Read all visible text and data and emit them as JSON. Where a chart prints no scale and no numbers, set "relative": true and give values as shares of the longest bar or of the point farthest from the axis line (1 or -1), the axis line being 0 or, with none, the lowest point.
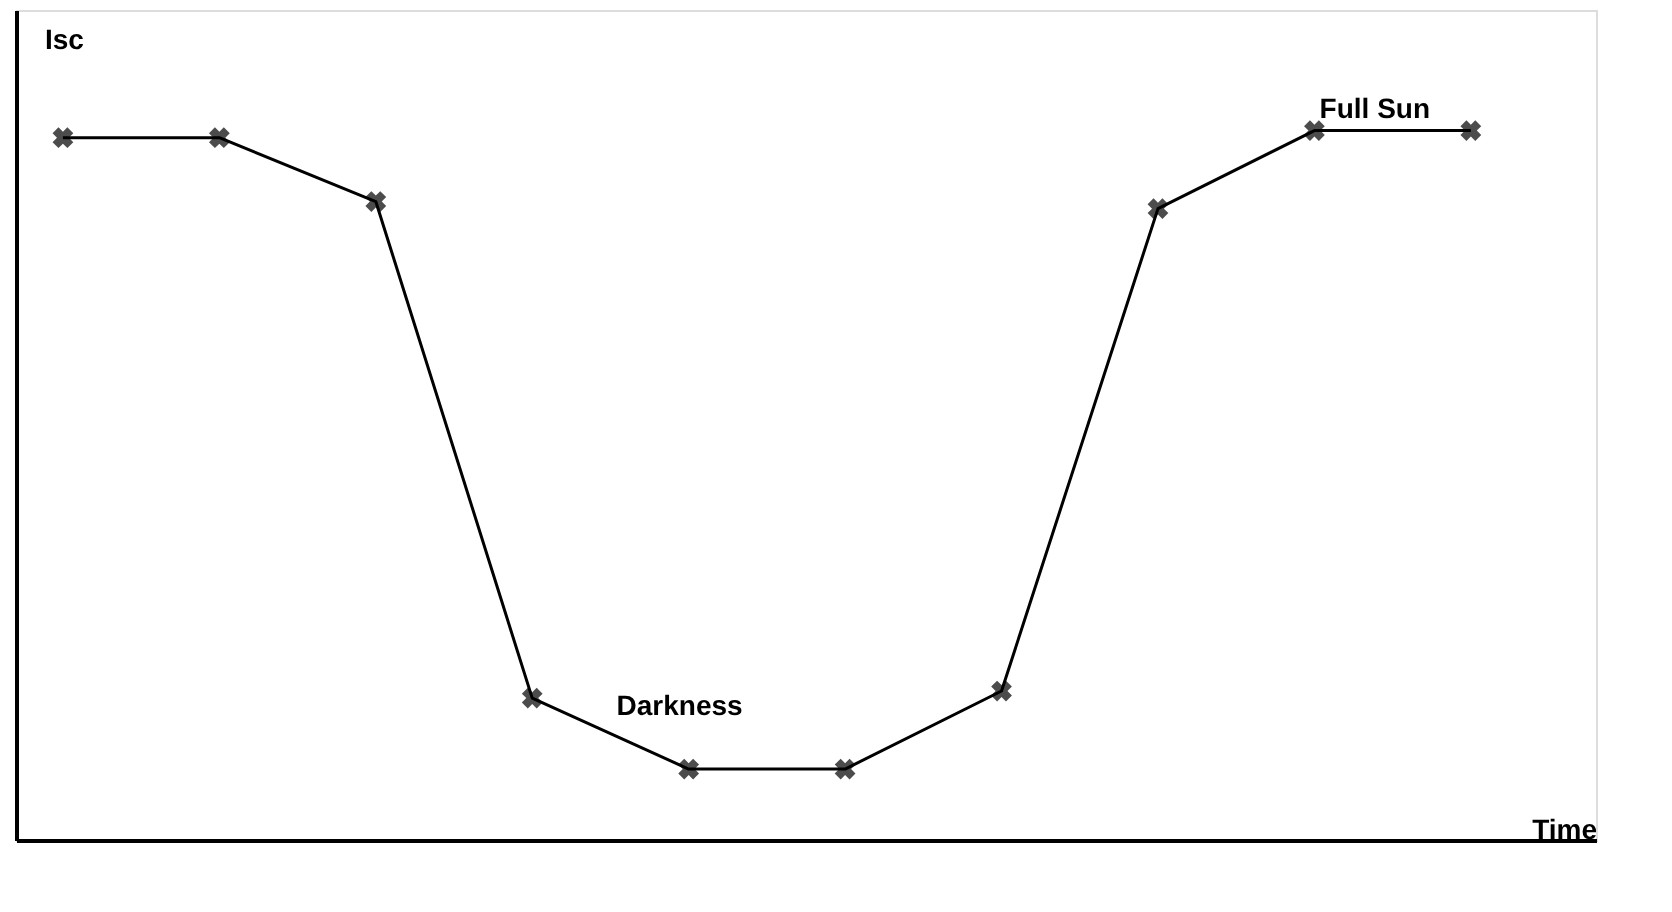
{
  "chart_data": {
    "type": "line",
    "relative": true,
    "xlabel": "Time",
    "ylabel": "Isc",
    "categories": [
      null,
      null,
      null,
      null,
      null,
      null,
      null,
      null,
      null,
      null
    ],
    "series": [
      {
        "color": "#000000",
        "values": [
          0.99,
          0.99,
          0.9,
          0.2,
          0.1,
          0.1,
          0.21,
          0.89,
          1,
          1
        ]
      }
    ],
    "marker": "cross",
    "line_style": "solid",
    "tick_labels": false,
    "grid": false,
    "annotations": [
      "Darkness",
      "Full Sun"
    ]
  }
}
